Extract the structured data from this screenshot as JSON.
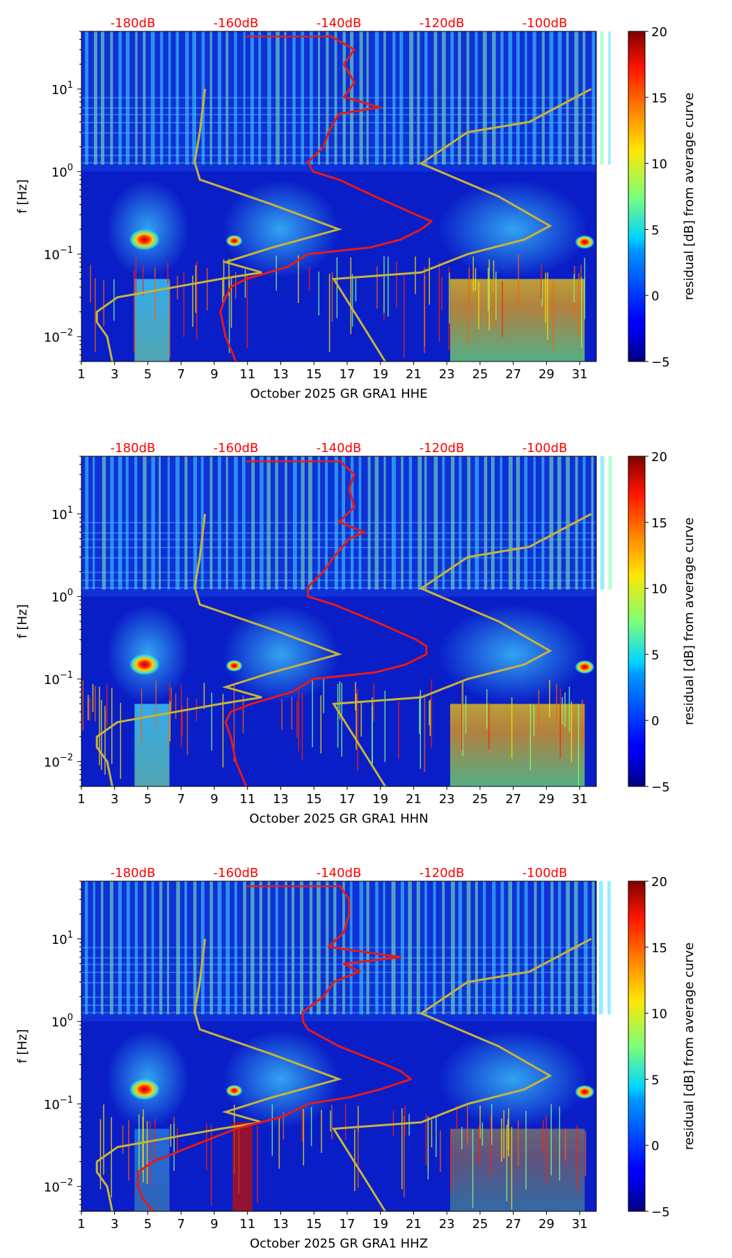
{
  "chart_data": [
    {
      "type": "heatmap",
      "channel": "HHE",
      "xlabel": "October 2025 GR GRA1  HHE",
      "ylabel": "f [Hz]",
      "x_ticks": [
        "1",
        "3",
        "5",
        "7",
        "9",
        "11",
        "13",
        "15",
        "17",
        "19",
        "21",
        "23",
        "25",
        "27",
        "29",
        "31"
      ],
      "xlim": [
        1,
        32
      ],
      "ylim": [
        0.005,
        50
      ],
      "y_ticks": [
        {
          "exp": "-2",
          "value": 0.01
        },
        {
          "exp": "-1",
          "value": 0.1
        },
        {
          "exp": "0",
          "value": 1
        },
        {
          "exp": "1",
          "value": 10
        }
      ],
      "top_axis": {
        "ticks": [
          "-180dB",
          "-160dB",
          "-140dB",
          "-120dB",
          "-100dB"
        ],
        "color": "#ff0000"
      },
      "colorbar": {
        "label": "residual [dB] from average curve",
        "range": [
          -5,
          20
        ],
        "ticks": [
          "20",
          "15",
          "10",
          "5",
          "0",
          "−5"
        ]
      },
      "nlnm_hz_db": [
        [
          0.005,
          -184
        ],
        [
          0.01,
          -185
        ],
        [
          0.015,
          -187
        ],
        [
          0.02,
          -187
        ],
        [
          0.03,
          -183
        ],
        [
          0.05,
          -163
        ],
        [
          0.06,
          -155
        ],
        [
          0.08,
          -162
        ],
        [
          0.12,
          -153
        ],
        [
          0.2,
          -140
        ],
        [
          0.4,
          -153
        ],
        [
          0.8,
          -167
        ],
        [
          1.3,
          -168
        ],
        [
          3,
          -167
        ],
        [
          10,
          -166
        ]
      ],
      "nhnm_hz_db": [
        [
          0.005,
          -131
        ],
        [
          0.05,
          -141
        ],
        [
          0.06,
          -124
        ],
        [
          0.1,
          -115
        ],
        [
          0.15,
          -104
        ],
        [
          0.22,
          -99
        ],
        [
          0.5,
          -109
        ],
        [
          1.25,
          -124
        ],
        [
          3,
          -115
        ],
        [
          4,
          -103
        ],
        [
          10,
          -91
        ]
      ],
      "median_psd_hz_db": [
        [
          0.005,
          -160
        ],
        [
          0.01,
          -162
        ],
        [
          0.02,
          -163
        ],
        [
          0.03,
          -162
        ],
        [
          0.04,
          -161
        ],
        [
          0.05,
          -158
        ],
        [
          0.07,
          -150
        ],
        [
          0.1,
          -146
        ],
        [
          0.12,
          -134
        ],
        [
          0.15,
          -128
        ],
        [
          0.2,
          -124
        ],
        [
          0.25,
          -122
        ],
        [
          0.3,
          -125
        ],
        [
          0.5,
          -133
        ],
        [
          0.8,
          -140
        ],
        [
          1.0,
          -145
        ],
        [
          1.3,
          -146
        ],
        [
          2,
          -143
        ],
        [
          3,
          -142
        ],
        [
          5,
          -140
        ],
        [
          6,
          -132
        ],
        [
          8,
          -139
        ],
        [
          12,
          -137
        ],
        [
          20,
          -139
        ],
        [
          30,
          -137
        ],
        [
          45,
          -142
        ]
      ]
    },
    {
      "type": "heatmap",
      "channel": "HHN",
      "xlabel": "October 2025 GR GRA1  HHN",
      "ylabel": "f [Hz]",
      "x_ticks": [
        "1",
        "3",
        "5",
        "7",
        "9",
        "11",
        "13",
        "15",
        "17",
        "19",
        "21",
        "23",
        "25",
        "27",
        "29",
        "31"
      ],
      "xlim": [
        1,
        32
      ],
      "ylim": [
        0.005,
        50
      ],
      "y_ticks": [
        {
          "exp": "-2",
          "value": 0.01
        },
        {
          "exp": "-1",
          "value": 0.1
        },
        {
          "exp": "0",
          "value": 1
        },
        {
          "exp": "1",
          "value": 10
        }
      ],
      "top_axis": {
        "ticks": [
          "-180dB",
          "-160dB",
          "-140dB",
          "-120dB",
          "-100dB"
        ],
        "color": "#ff0000"
      },
      "colorbar": {
        "label": "residual [dB] from average curve",
        "range": [
          -5,
          20
        ],
        "ticks": [
          "20",
          "15",
          "10",
          "5",
          "0",
          "−5"
        ]
      },
      "nlnm_hz_db": [
        [
          0.005,
          -184
        ],
        [
          0.01,
          -185
        ],
        [
          0.015,
          -187
        ],
        [
          0.02,
          -187
        ],
        [
          0.03,
          -183
        ],
        [
          0.05,
          -163
        ],
        [
          0.06,
          -155
        ],
        [
          0.08,
          -162
        ],
        [
          0.12,
          -153
        ],
        [
          0.2,
          -140
        ],
        [
          0.4,
          -153
        ],
        [
          0.8,
          -167
        ],
        [
          1.3,
          -168
        ],
        [
          3,
          -167
        ],
        [
          10,
          -166
        ]
      ],
      "nhnm_hz_db": [
        [
          0.005,
          -131
        ],
        [
          0.05,
          -141
        ],
        [
          0.06,
          -124
        ],
        [
          0.1,
          -115
        ],
        [
          0.15,
          -104
        ],
        [
          0.22,
          -99
        ],
        [
          0.5,
          -109
        ],
        [
          1.25,
          -124
        ],
        [
          3,
          -115
        ],
        [
          4,
          -103
        ],
        [
          10,
          -91
        ]
      ],
      "median_psd_hz_db": [
        [
          0.005,
          -158
        ],
        [
          0.01,
          -160
        ],
        [
          0.02,
          -161
        ],
        [
          0.03,
          -162
        ],
        [
          0.04,
          -161
        ],
        [
          0.05,
          -157
        ],
        [
          0.07,
          -149
        ],
        [
          0.1,
          -145
        ],
        [
          0.12,
          -133
        ],
        [
          0.15,
          -127
        ],
        [
          0.2,
          -123
        ],
        [
          0.25,
          -123
        ],
        [
          0.3,
          -125
        ],
        [
          0.5,
          -133
        ],
        [
          0.8,
          -141
        ],
        [
          1.0,
          -146
        ],
        [
          1.3,
          -146
        ],
        [
          2,
          -143
        ],
        [
          3,
          -141
        ],
        [
          5,
          -138
        ],
        [
          6,
          -135
        ],
        [
          8,
          -140
        ],
        [
          12,
          -137
        ],
        [
          20,
          -138
        ],
        [
          30,
          -137
        ],
        [
          45,
          -140
        ]
      ]
    },
    {
      "type": "heatmap",
      "channel": "HHZ",
      "xlabel": "October 2025 GR GRA1  HHZ",
      "ylabel": "f [Hz]",
      "x_ticks": [
        "1",
        "3",
        "5",
        "7",
        "9",
        "11",
        "13",
        "15",
        "17",
        "19",
        "21",
        "23",
        "25",
        "27",
        "29",
        "31"
      ],
      "xlim": [
        1,
        32
      ],
      "ylim": [
        0.005,
        50
      ],
      "y_ticks": [
        {
          "exp": "-2",
          "value": 0.01
        },
        {
          "exp": "-1",
          "value": 0.1
        },
        {
          "exp": "0",
          "value": 1
        },
        {
          "exp": "1",
          "value": 10
        }
      ],
      "top_axis": {
        "ticks": [
          "-180dB",
          "-160dB",
          "-140dB",
          "-120dB",
          "-100dB"
        ],
        "color": "#ff0000"
      },
      "colorbar": {
        "label": "residual [dB] from average curve",
        "range": [
          -5,
          20
        ],
        "ticks": [
          "20",
          "15",
          "10",
          "5",
          "0",
          "−5"
        ]
      },
      "nlnm_hz_db": [
        [
          0.005,
          -184
        ],
        [
          0.01,
          -185
        ],
        [
          0.015,
          -187
        ],
        [
          0.02,
          -187
        ],
        [
          0.03,
          -183
        ],
        [
          0.05,
          -163
        ],
        [
          0.06,
          -155
        ],
        [
          0.08,
          -162
        ],
        [
          0.12,
          -153
        ],
        [
          0.2,
          -140
        ],
        [
          0.4,
          -153
        ],
        [
          0.8,
          -167
        ],
        [
          1.3,
          -168
        ],
        [
          3,
          -167
        ],
        [
          10,
          -166
        ]
      ],
      "nhnm_hz_db": [
        [
          0.005,
          -131
        ],
        [
          0.05,
          -141
        ],
        [
          0.06,
          -124
        ],
        [
          0.1,
          -115
        ],
        [
          0.15,
          -104
        ],
        [
          0.22,
          -99
        ],
        [
          0.5,
          -109
        ],
        [
          1.25,
          -124
        ],
        [
          3,
          -115
        ],
        [
          4,
          -103
        ],
        [
          10,
          -91
        ]
      ],
      "median_psd_hz_db": [
        [
          0.005,
          -176
        ],
        [
          0.007,
          -178
        ],
        [
          0.01,
          -179
        ],
        [
          0.015,
          -179
        ],
        [
          0.02,
          -176
        ],
        [
          0.03,
          -169
        ],
        [
          0.05,
          -160
        ],
        [
          0.07,
          -151
        ],
        [
          0.1,
          -146
        ],
        [
          0.12,
          -138
        ],
        [
          0.15,
          -132
        ],
        [
          0.2,
          -126
        ],
        [
          0.25,
          -128
        ],
        [
          0.3,
          -131
        ],
        [
          0.5,
          -140
        ],
        [
          0.8,
          -146
        ],
        [
          1.0,
          -147
        ],
        [
          1.3,
          -147
        ],
        [
          2,
          -143
        ],
        [
          3,
          -141
        ],
        [
          4,
          -136
        ],
        [
          5,
          -139
        ],
        [
          6,
          -128
        ],
        [
          8,
          -142
        ],
        [
          12,
          -139
        ],
        [
          20,
          -138
        ],
        [
          30,
          -138
        ],
        [
          45,
          -140
        ]
      ]
    }
  ],
  "colors": {
    "median_psd": "#e41a1c",
    "noise_models": "#c8b43a",
    "top_axis_text": "#ff0000"
  }
}
